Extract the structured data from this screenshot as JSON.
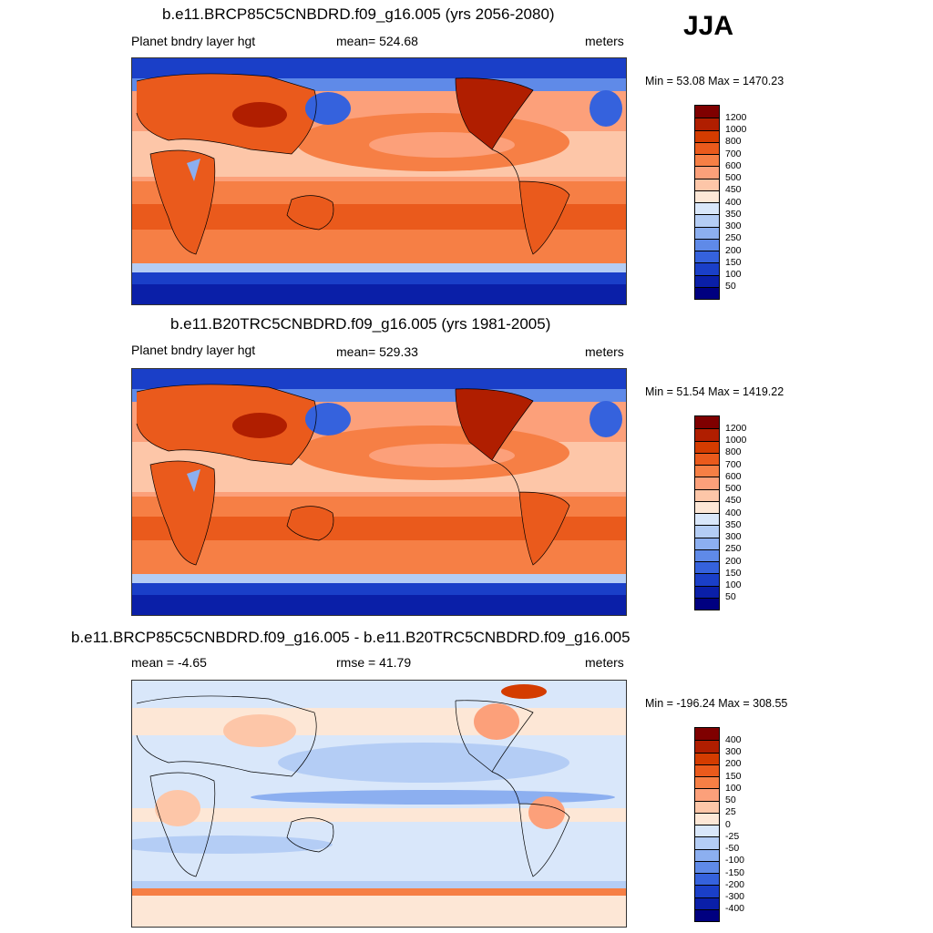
{
  "season": "JJA",
  "panels": [
    {
      "title": "b.e11.BRCP85C5CNBDRD.f09_g16.005 (yrs 2056-2080)",
      "left_label": "Planet bndry layer hgt",
      "center_label": "mean= 524.68",
      "right_label": "meters",
      "minmax": "Min =  53.08 Max = 1470.23",
      "colorbar": {
        "levels": [
          "1200",
          "1000",
          "800",
          "700",
          "600",
          "500",
          "450",
          "400",
          "350",
          "300",
          "250",
          "200",
          "150",
          "100",
          "50"
        ],
        "colors": [
          "#7f0000",
          "#b01e00",
          "#d43c00",
          "#ea5a1c",
          "#f67f45",
          "#fca07a",
          "#fdc6a8",
          "#fde7d6",
          "#d9e7fa",
          "#b4cdf5",
          "#8caff0",
          "#5f8ae8",
          "#3562dd",
          "#1a3fc8",
          "#0a1fa8",
          "#000080"
        ]
      }
    },
    {
      "title": "b.e11.B20TRC5CNBDRD.f09_g16.005 (yrs 1981-2005)",
      "left_label": "Planet bndry layer hgt",
      "center_label": "mean= 529.33",
      "right_label": "meters",
      "minmax": "Min =  51.54 Max = 1419.22",
      "colorbar": {
        "levels": [
          "1200",
          "1000",
          "800",
          "700",
          "600",
          "500",
          "450",
          "400",
          "350",
          "300",
          "250",
          "200",
          "150",
          "100",
          "50"
        ],
        "colors": [
          "#7f0000",
          "#b01e00",
          "#d43c00",
          "#ea5a1c",
          "#f67f45",
          "#fca07a",
          "#fdc6a8",
          "#fde7d6",
          "#d9e7fa",
          "#b4cdf5",
          "#8caff0",
          "#5f8ae8",
          "#3562dd",
          "#1a3fc8",
          "#0a1fa8",
          "#000080"
        ]
      }
    },
    {
      "title": "b.e11.BRCP85C5CNBDRD.f09_g16.005 - b.e11.B20TRC5CNBDRD.f09_g16.005",
      "left_label": "mean =  -4.65",
      "center_label": "rmse =  41.79",
      "right_label": "meters",
      "minmax": "Min = -196.24 Max = 308.55",
      "colorbar": {
        "levels": [
          "400",
          "300",
          "200",
          "150",
          "100",
          "50",
          "25",
          "0",
          "-25",
          "-50",
          "-100",
          "-150",
          "-200",
          "-300",
          "-400"
        ],
        "colors": [
          "#7f0000",
          "#b01e00",
          "#d43c00",
          "#ea5a1c",
          "#f67f45",
          "#fca07a",
          "#fdc6a8",
          "#fde7d6",
          "#d9e7fa",
          "#b4cdf5",
          "#8caff0",
          "#5f8ae8",
          "#3562dd",
          "#1a3fc8",
          "#0a1fa8",
          "#000080"
        ]
      }
    }
  ]
}
